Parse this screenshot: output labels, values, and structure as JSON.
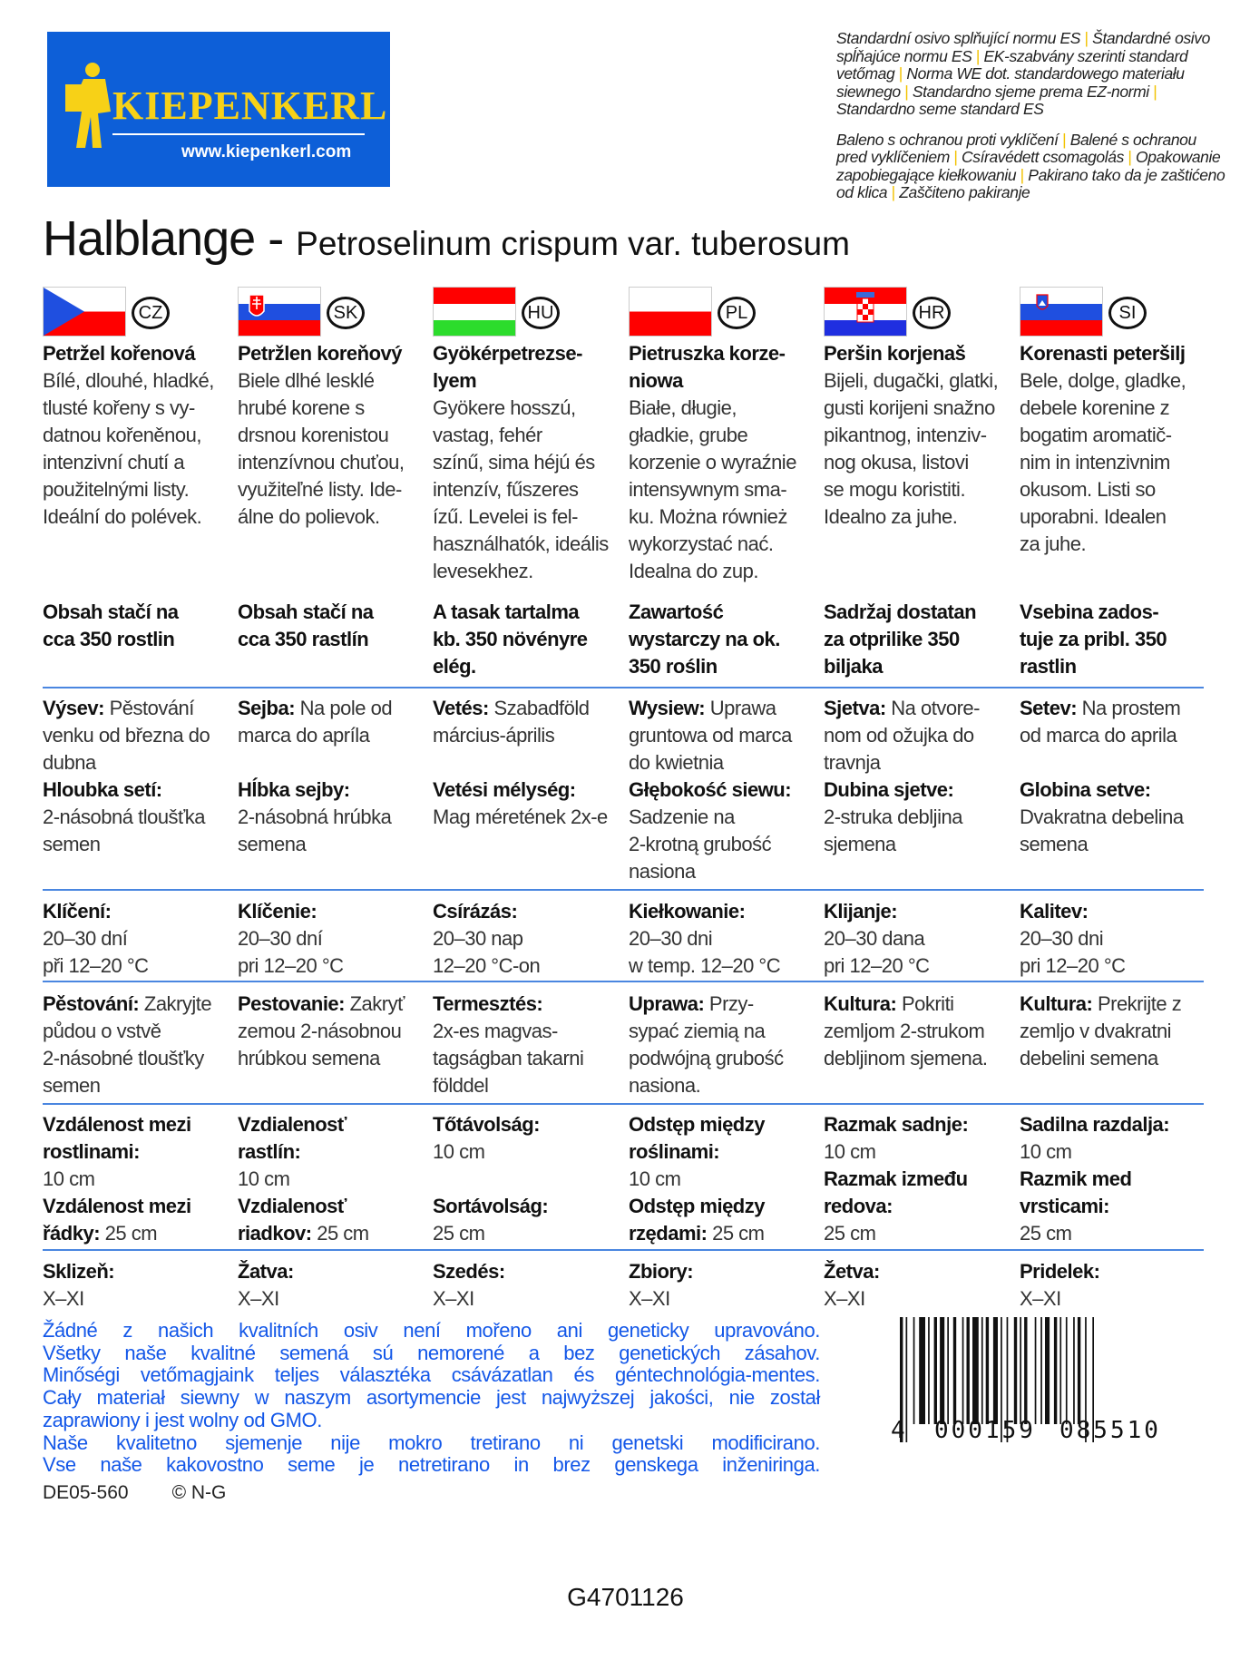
{
  "logo": {
    "brand": "KIEPENKERL",
    "registered": "®",
    "url": "www.kiepenkerl.com",
    "color": "#0d5fd8",
    "accent": "#f7d117"
  },
  "standards": {
    "para1": [
      "Standardní osivo splňující normu ES",
      "Štandardné osivo spĺňajúce normu ES",
      "EK-szabvány szerinti standard vetőmag",
      "Norma WE dot. standardowego materiału siewnego",
      "Standardno sjeme prema EZ-normi",
      "Standardno seme standard ES"
    ],
    "para2": [
      "Baleno s ochranou proti vyklíčení",
      "Balené s ochranou pred vyklíčeniem",
      "Csíravédett csomagolás",
      "Opakowanie zapobiegające kiełkowaniu",
      "Pakirano tako da je zaštićeno od klica",
      "Zaščiteno pakiranje"
    ],
    "separator": "|"
  },
  "title": {
    "main": "Halblange -",
    "latin": "Petroselinum crispum var. tuberosum"
  },
  "columns": [
    {
      "code": "CZ",
      "flag": "cz",
      "heading": "Petržel kořenová",
      "desc": "Bílé, dlouhé, hladké,\ntlusté kořeny s vy-\ndatnou kořeněnou,\nintenzivní chutí a\npoužitelnými listy.\nIdeální do polévek.",
      "content": "Obsah stačí na\ncca 350 rostlin",
      "sow": [
        {
          "b": "Výsev:",
          "t": " Pěstování\nvenku od března do\ndubna\n"
        },
        {
          "b": "Hloubka setí:",
          "t": "\n2-násobná tloušťka\nsemen"
        }
      ],
      "germ": [
        {
          "b": "Klíčení:",
          "t": "\n20–30 dní\npři 12–20 °C"
        }
      ],
      "cult": [
        {
          "b": "Pěstování:",
          "t": " Zakryjte\npůdou o vstvě\n2-násobné tloušťky\nsemen"
        }
      ],
      "space": [
        {
          "b": "Vzdálenost mezi\nrostlinami:",
          "t": "\n10 cm\n"
        },
        {
          "b": "Vzdálenost mezi\nřádky:",
          "t": " 25 cm"
        }
      ],
      "harvest": [
        {
          "b": "Sklizeň:",
          "t": "\nX–XI"
        }
      ]
    },
    {
      "code": "SK",
      "flag": "sk",
      "heading": "Petržlen koreňový",
      "desc": "Biele dlhé lesklé\nhrubé korene s\ndrsnou korenistou\nintenzívnou chuťou,\nvyužiteľné listy. Ide-\nálne do polievok.",
      "content": "Obsah stačí na\ncca 350 rastlín",
      "sow": [
        {
          "b": "Sejba:",
          "t": " Na pole od\nmarca do apríla\n\n"
        },
        {
          "b": "Hĺbka sejby:",
          "t": "\n2-násobná hrúbka\nsemena"
        }
      ],
      "germ": [
        {
          "b": "Klíčenie:",
          "t": "\n20–30 dní\npri 12–20 °C"
        }
      ],
      "cult": [
        {
          "b": "Pestovanie:",
          "t": " Zakryť\nzemou 2-násobnou\nhrúbkou semena"
        }
      ],
      "space": [
        {
          "b": "Vzdialenosť\nrastlín:",
          "t": "\n10 cm\n"
        },
        {
          "b": "Vzdialenosť\nriadkov:",
          "t": " 25 cm"
        }
      ],
      "harvest": [
        {
          "b": "Žatva:",
          "t": "\nX–XI"
        }
      ]
    },
    {
      "code": "HU",
      "flag": "hu",
      "heading": "Gyökérpetrezse-\nlyem",
      "desc": "Gyökere hosszú,\nvastag, fehér\nszínű, sima héjú és\nintenzív, fűszeres\nízű. Levelei is fel-\nhasználhatók, ideális\nlevesekhez.",
      "content": "A tasak tartalma\nkb. 350 növényre\nelég.",
      "sow": [
        {
          "b": "Vetés:",
          "t": " Szabadföld\nmárcius-április\n\n"
        },
        {
          "b": "Vetési mélység:",
          "t": "\nMag méretének 2x-e"
        }
      ],
      "germ": [
        {
          "b": "Csírázás:",
          "t": "\n20–30 nap\n12–20 °C-on"
        }
      ],
      "cult": [
        {
          "b": "Termesztés:",
          "t": "\n2x-es magvas-\ntagságban takarni\nfölddel"
        }
      ],
      "space": [
        {
          "b": "Tőtávolság:",
          "t": "\n10 cm\n\n"
        },
        {
          "b": "Sortávolság:",
          "t": "\n25 cm"
        }
      ],
      "harvest": [
        {
          "b": "Szedés:",
          "t": "\nX–XI"
        }
      ]
    },
    {
      "code": "PL",
      "flag": "pl",
      "heading": "Pietruszka korze-\nniowa",
      "desc": "Białe, długie,\ngładkie, grube\nkorzenie o wyraźnie\nintensywnym sma-\nku. Można również\nwykorzystać nać.\nIdealna do zup.",
      "content": "Zawartość\nwystarczy na ok.\n350 roślin",
      "sow": [
        {
          "b": "Wysiew:",
          "t": " Uprawa\ngruntowa od marca\ndo kwietnia\n"
        },
        {
          "b": "Głębokość siewu:",
          "t": "\nSadzenie na\n2-krotną grubość\nnasiona"
        }
      ],
      "germ": [
        {
          "b": "Kiełkowanie:",
          "t": "\n20–30 dni\nw temp. 12–20 °C"
        }
      ],
      "cult": [
        {
          "b": "Uprawa:",
          "t": " Przy-\nsypać ziemią na\npodwójną grubość\nnasiona."
        }
      ],
      "space": [
        {
          "b": "Odstęp między\nroślinami:",
          "t": "\n10 cm\n"
        },
        {
          "b": "Odstęp między\nrzędami:",
          "t": " 25 cm"
        }
      ],
      "harvest": [
        {
          "b": "Zbiory:",
          "t": "\nX–XI"
        }
      ]
    },
    {
      "code": "HR",
      "flag": "hr",
      "heading": "Peršin korjenaš",
      "desc": "Bijeli, dugački, glatki,\ngusti korijeni snažno\npikantnog, intenziv-\nnog okusa, listovi\nse mogu koristiti.\nIdealno za juhe.",
      "content": "Sadržaj dostatan\nza otprilike 350\nbiljaka",
      "sow": [
        {
          "b": "Sjetva:",
          "t": " Na otvore-\nnom od ožujka do\ntravnja\n"
        },
        {
          "b": "Dubina sjetve:",
          "t": "\n2-struka debljina\nsjemena"
        }
      ],
      "germ": [
        {
          "b": "Klijanje:",
          "t": "\n20–30 dana\npri 12–20 °C"
        }
      ],
      "cult": [
        {
          "b": "Kultura:",
          "t": " Pokriti\nzemljom 2-strukom\ndebljinom sjemena."
        }
      ],
      "space": [
        {
          "b": "Razmak sadnje:",
          "t": "\n10 cm\n"
        },
        {
          "b": "Razmak između\nredova:",
          "t": "\n25 cm"
        }
      ],
      "harvest": [
        {
          "b": "Žetva:",
          "t": "\nX–XI"
        }
      ]
    },
    {
      "code": "SI",
      "flag": "si",
      "heading": "Korenasti peteršilj",
      "desc": "Bele, dolge, gladke,\ndebele korenine z\nbogatim aromatič-\nnim in intenzivnim\nokusom. Listi so\nuporabni. Idealen\nza juhe.",
      "content": "Vsebina zados-\ntuje za pribl. 350\nrastlin",
      "sow": [
        {
          "b": "Setev:",
          "t": " Na prostem\nod marca do aprila\n\n"
        },
        {
          "b": "Globina setve:",
          "t": "\nDvakratna debelina\nsemena"
        }
      ],
      "germ": [
        {
          "b": "Kalitev:",
          "t": "\n20–30 dni\npri 12–20 °C"
        }
      ],
      "cult": [
        {
          "b": "Kultura:",
          "t": " Prekrijte z\nzemljo v dvakratni\ndebelini semena"
        }
      ],
      "space": [
        {
          "b": "Sadilna razdalja:",
          "t": "\n10 cm\n"
        },
        {
          "b": "Razmik med\nvrsticami:",
          "t": "\n25 cm"
        }
      ],
      "harvest": [
        {
          "b": "Pridelek:",
          "t": "\nX–XI"
        }
      ]
    }
  ],
  "notice": {
    "color": "#1357e8",
    "lines": [
      "Žádné z našich kvalitních osiv není mořeno ani geneticky upravováno.",
      "Všetky naše kvalitné semená sú nemorené a bez genetických zásahov.",
      "Minőségi vetőmagjaink teljes választéka csávázatlan és géntechnológia-mentes.",
      "Cały materiał siewny w naszym asortymencie jest najwyższej jakości, nie został",
      "zaprawiony i jest wolny od GMO.",
      "Naše kvalitetno sjemenje nije mokro tretirano ni genetski modificirano.",
      "Vse naše kakovostno seme je netretirano in brez genskega inženiringa."
    ]
  },
  "footer": {
    "article": "DE05-560",
    "copyright": "© N-G",
    "code": "G4701126"
  },
  "barcode": {
    "first": "4",
    "left": "000159",
    "right": "085510"
  },
  "divider_color": "#4a86e0"
}
